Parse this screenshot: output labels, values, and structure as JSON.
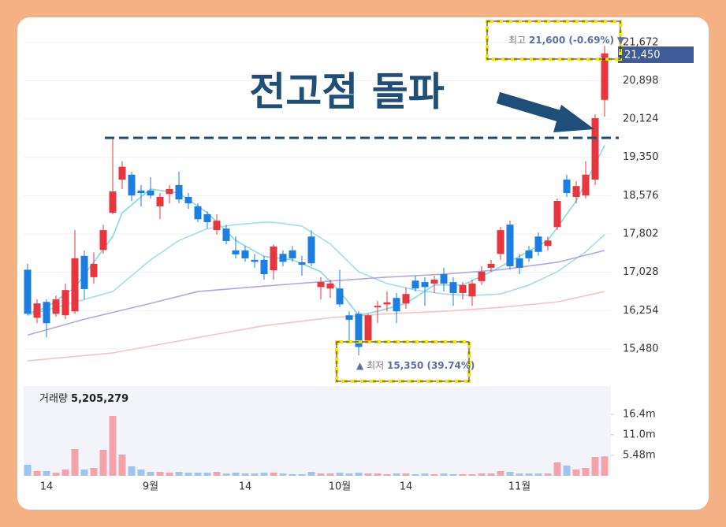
{
  "chart_data": {
    "type": "candlestick",
    "annotation": "전고점 돌파",
    "categories": [
      null,
      null,
      "14",
      null,
      null,
      null,
      null,
      null,
      null,
      null,
      null,
      null,
      null,
      "9월",
      null,
      null,
      null,
      null,
      null,
      null,
      null,
      null,
      null,
      "14",
      null,
      null,
      null,
      null,
      null,
      null,
      null,
      null,
      null,
      "10월",
      null,
      null,
      null,
      null,
      null,
      null,
      "14",
      null,
      null,
      null,
      null,
      null,
      null,
      null,
      null,
      null,
      null,
      null,
      "11월",
      null,
      null,
      null,
      null,
      null,
      null,
      null,
      null,
      null
    ],
    "open": [
      17080,
      16110,
      16430,
      16190,
      16160,
      16240,
      17360,
      16930,
      17480,
      18230,
      18900,
      19000,
      18680,
      18680,
      18360,
      18610,
      18790,
      18550,
      18360,
      18200,
      17880,
      17910,
      17470,
      17470,
      17280,
      17280,
      17070,
      17400,
      17470,
      17230,
      17750,
      16730,
      16700,
      16700,
      16160,
      16190,
      15650,
      16320,
      16380,
      16510,
      16400,
      16860,
      16830,
      16800,
      16990,
      16830,
      16610,
      16540,
      16850,
      17120,
      17400,
      17990,
      17310,
      17470,
      17750,
      17560,
      17940,
      18900,
      18550,
      18580,
      18900,
      20510
    ],
    "high": [
      17200,
      16480,
      16480,
      16560,
      16800,
      17880,
      17470,
      17430,
      17990,
      19740,
      19270,
      19060,
      18790,
      18950,
      18630,
      18790,
      19060,
      18630,
      18420,
      18260,
      18200,
      17990,
      17750,
      17560,
      17400,
      17360,
      17590,
      17470,
      17560,
      17360,
      17880,
      16930,
      16880,
      17080,
      16240,
      16240,
      16190,
      16450,
      16640,
      16610,
      16720,
      16960,
      16930,
      16960,
      17120,
      16930,
      16830,
      16880,
      17150,
      17280,
      17950,
      18070,
      17400,
      17560,
      17830,
      17750,
      18520,
      19000,
      18870,
      19270,
      20220,
      21600
    ],
    "low": [
      16160,
      16000,
      15710,
      16130,
      16080,
      16190,
      16480,
      16800,
      17400,
      18200,
      18710,
      18470,
      18360,
      18520,
      18100,
      18420,
      18420,
      18310,
      18040,
      17910,
      17790,
      17590,
      17310,
      17240,
      17120,
      16880,
      16880,
      17150,
      17240,
      16960,
      17150,
      16480,
      16510,
      16320,
      15650,
      15350,
      15600,
      16000,
      16240,
      16000,
      16290,
      16640,
      16350,
      16610,
      16640,
      16350,
      16480,
      16350,
      16770,
      17040,
      17280,
      17080,
      16990,
      17240,
      17360,
      17470,
      17880,
      18550,
      18420,
      18520,
      18790,
      20170
    ],
    "close": [
      16190,
      16400,
      16000,
      16480,
      16670,
      17310,
      16690,
      17200,
      17880,
      18660,
      19160,
      18580,
      18630,
      18580,
      18550,
      18710,
      18500,
      18420,
      18100,
      18040,
      18070,
      17660,
      17390,
      17310,
      17240,
      16990,
      17550,
      17240,
      17310,
      17180,
      17210,
      16830,
      16800,
      16380,
      16070,
      15520,
      16160,
      16350,
      16420,
      16240,
      16590,
      16700,
      16730,
      16880,
      16800,
      16610,
      16770,
      16800,
      17040,
      17200,
      17880,
      17150,
      17120,
      17310,
      17440,
      17670,
      18470,
      18630,
      18770,
      19000,
      20140,
      21450
    ],
    "last_close_label": "21,450",
    "volume": [
      2950000,
      1260000,
      1260000,
      840000,
      1690000,
      7170000,
      1690000,
      2110000,
      6960000,
      16020000,
      5690000,
      2530000,
      1690000,
      1050000,
      1050000,
      840000,
      1050000,
      840000,
      840000,
      840000,
      1050000,
      630000,
      840000,
      630000,
      630000,
      840000,
      840000,
      630000,
      420000,
      420000,
      1050000,
      630000,
      630000,
      840000,
      630000,
      840000,
      630000,
      630000,
      420000,
      630000,
      630000,
      420000,
      630000,
      420000,
      630000,
      420000,
      420000,
      420000,
      630000,
      630000,
      1260000,
      1050000,
      630000,
      630000,
      630000,
      630000,
      3580000,
      2740000,
      1690000,
      2110000,
      5060000,
      5205279
    ],
    "volume_title": "거래량",
    "volume_value_label": "5,205,279",
    "up_color": "#e8363f",
    "down_color": "#1b7ee0",
    "volume_up_color": "#f4a3aa",
    "volume_down_color": "#9ec5f0",
    "ylim": [
      15050,
      22050
    ],
    "yticks": [
      {
        "value": 15480,
        "label": "15,480"
      },
      {
        "value": 16254,
        "label": "16,254"
      },
      {
        "value": 17028,
        "label": "17,028"
      },
      {
        "value": 17802,
        "label": "17,802"
      },
      {
        "value": 18576,
        "label": "18,576"
      },
      {
        "value": 19350,
        "label": "19,350"
      },
      {
        "value": 20124,
        "label": "20,124"
      },
      {
        "value": 20898,
        "label": "20,898"
      },
      {
        "value": 21672,
        "label": "21,672"
      }
    ],
    "vylim": [
      0,
      24030000
    ],
    "vyticks": [
      {
        "value": 5480000,
        "label": "5.48m"
      },
      {
        "value": 11000000,
        "label": "11.0m"
      },
      {
        "value": 16400000,
        "label": "16.4m"
      }
    ],
    "grid": true,
    "high_marker": {
      "label": "최고",
      "value": 21600,
      "value_label": "21,600 (-0.69%)",
      "arrow": "▼"
    },
    "low_marker": {
      "label": "최저",
      "value": 15350,
      "value_label": "15,350 (39.74%)",
      "arrow": "▲"
    },
    "ma_lines": [
      {
        "color": "#7fdbe6",
        "x": [
          0,
          2,
          5,
          9,
          10,
          13,
          16,
          19,
          22,
          25,
          28,
          31,
          33,
          35,
          37,
          40,
          43,
          46,
          49,
          52,
          55,
          58,
          61
        ],
        "values": [
          16190,
          16320,
          16720,
          17750,
          18230,
          18710,
          18630,
          18230,
          17670,
          17350,
          17280,
          17040,
          16640,
          16160,
          16240,
          16400,
          16770,
          16770,
          17040,
          17350,
          17670,
          18470,
          19590
        ]
      },
      {
        "color": "#a3dcec",
        "x": [
          0,
          6,
          9,
          13,
          16,
          19,
          22,
          25,
          26,
          29,
          32,
          35,
          38,
          41,
          44,
          47,
          50,
          53,
          56,
          59,
          61
        ],
        "values": [
          16160,
          16480,
          16640,
          17280,
          17670,
          17910,
          17990,
          18040,
          18040,
          17960,
          17600,
          17040,
          16800,
          16670,
          16590,
          16560,
          16590,
          16770,
          17040,
          17440,
          17790
        ]
      },
      {
        "color": "#b3a6e3",
        "x": [
          0,
          6,
          13,
          18,
          25,
          32,
          38,
          44,
          50,
          56,
          61
        ],
        "values": [
          15760,
          16080,
          16400,
          16640,
          16750,
          16850,
          16930,
          16990,
          17080,
          17230,
          17470
        ]
      },
      {
        "color": "#f6c3c3",
        "x": [
          0,
          9,
          18,
          25,
          32,
          38,
          44,
          50,
          56,
          61
        ],
        "values": [
          15240,
          15400,
          15710,
          15950,
          16110,
          16190,
          16240,
          16320,
          16430,
          16640
        ]
      }
    ]
  }
}
